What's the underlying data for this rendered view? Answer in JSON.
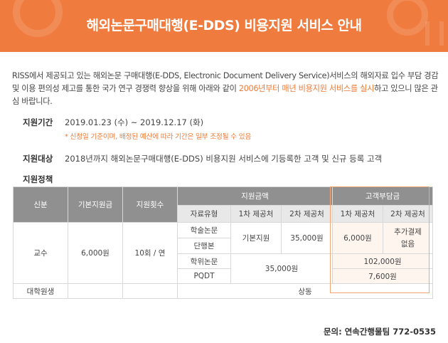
{
  "banner": {
    "title": "해외논문구매대행(E-DDS) 비용지원 서비스 안내"
  },
  "intro": {
    "part1": "RISS에서 제공되고 있는 해외논문 구매대행(E-DDS, Electronic Document Delivery Service)서비스의 해외자료 입수 부담 경감 및 이용 편의성 제고를 통한 국가 연구 경쟁력 향상을 위해 아래와 같이 ",
    "highlight": "2006년부터 매년 비용지원 서비스를 실시",
    "part2": "하고 있으니 많은 관심 바랍니다."
  },
  "period": {
    "label": "지원기간",
    "value": "2019.01.23 (수) ~ 2019.12.17 (화)",
    "note": "* 신청일 기준이며, 배정된 예산에 따라 기간은 일부 조정될 수 있음"
  },
  "target": {
    "label": "지원대상",
    "value": "2018년까지 해외논문구매대행(E-DDS) 비용지원 서비스에 기등록한 고객 및 신규 등록 고객"
  },
  "policy": {
    "label": "지원정책",
    "headers": {
      "status": "신분",
      "base": "기본지원금",
      "count": "지원횟수",
      "amount": "지원금액",
      "customer": "고객부담금",
      "type": "자료유형",
      "first": "1차 제공처",
      "second": "2차 제공처",
      "cust_first": "1차 제공처",
      "cust_second": "2차 제공처"
    },
    "professor": {
      "status": "교수",
      "base": "6,000원",
      "count": "10회 / 연",
      "types": [
        "학술논문",
        "단행본",
        "학위논문",
        "PQDT"
      ],
      "paper_first": "기본지원",
      "paper_second": "35,000원",
      "paper_cust_first": "6,000원",
      "paper_cust_second": "추가결제 없음",
      "thesis_amount": "35,000원",
      "thesis_cust": "102,000원",
      "pqdt_cust": "7,600원"
    },
    "grad": {
      "status": "대학원생",
      "same": "상동"
    }
  },
  "contact": {
    "text": "문의: 연속간행물팀 772-0535"
  },
  "colors": {
    "accent": "#f07b3e",
    "header_gray": "#909090"
  }
}
